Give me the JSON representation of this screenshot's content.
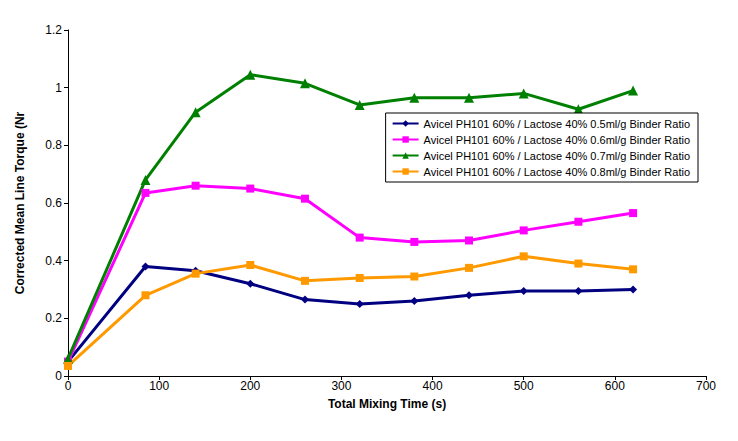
{
  "chart_data": {
    "type": "line",
    "x_label": "Total Mixing Time (s)",
    "y_label": "Corrected Mean Line Torque (Nr",
    "x": [
      0,
      85,
      140,
      200,
      260,
      320,
      380,
      440,
      500,
      560,
      620
    ],
    "series": [
      {
        "name": "Avicel PH101 60% / Lactose 40% 0.5ml/g Binder Ratio",
        "color": "#000080",
        "marker": "diamond",
        "values": [
          0.05,
          0.38,
          0.365,
          0.32,
          0.265,
          0.25,
          0.26,
          0.28,
          0.295,
          0.295,
          0.3
        ]
      },
      {
        "name": "Avicel PH101 60% / Lactose 40% 0.6ml/g Binder Ratio",
        "color": "#ff00ff",
        "marker": "square",
        "values": [
          0.05,
          0.635,
          0.66,
          0.65,
          0.615,
          0.48,
          0.465,
          0.47,
          0.505,
          0.535,
          0.565
        ]
      },
      {
        "name": "Avicel PH101 60% / Lactose 40% 0.7ml/g Binder Ratio",
        "color": "#008000",
        "marker": "triangle",
        "values": [
          0.06,
          0.68,
          0.915,
          1.045,
          1.015,
          0.94,
          0.965,
          0.965,
          0.98,
          0.925,
          0.99
        ]
      },
      {
        "name": "Avicel PH101 60% / Lactose 40% 0.8ml/g Binder Ratio",
        "color": "#ff9900",
        "marker": "square",
        "values": [
          0.035,
          0.28,
          0.355,
          0.385,
          0.33,
          0.34,
          0.345,
          0.375,
          0.415,
          0.39,
          0.37
        ]
      }
    ],
    "xlim": [
      0,
      700
    ],
    "xticks": [
      0,
      100,
      200,
      300,
      400,
      500,
      600,
      700
    ],
    "ylim": [
      0,
      1.2
    ],
    "yticks": [
      0,
      0.2,
      0.4,
      0.6,
      0.8,
      1,
      1.2
    ],
    "grid": false,
    "legend": "upper right"
  }
}
